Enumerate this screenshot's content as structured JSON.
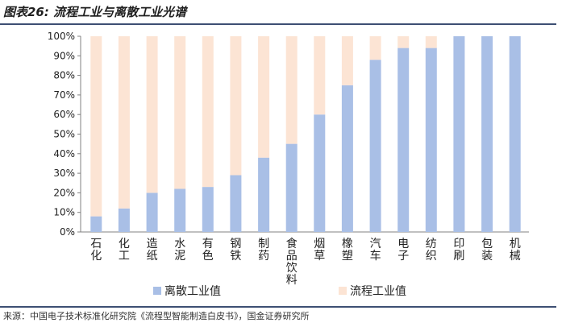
{
  "figure": {
    "title": "图表26:  流程工业与离散工业光谱",
    "source": "来源：中国电子技术标准化研究院《流程型智能制造白皮书》，国金证券研究所"
  },
  "chart_data": {
    "type": "bar",
    "stacked": true,
    "percent": true,
    "categories": [
      "石化",
      "化工",
      "造纸",
      "水泥",
      "有色",
      "钢铁",
      "制药",
      "食品饮料",
      "烟草",
      "橡塑",
      "汽车",
      "电子",
      "纺织",
      "印刷",
      "包装",
      "机械"
    ],
    "series": [
      {
        "name": "离散工业值",
        "color": "#a9bfe6",
        "values": [
          8,
          12,
          20,
          22,
          23,
          29,
          38,
          45,
          60,
          75,
          88,
          94,
          94,
          100,
          100,
          100
        ]
      },
      {
        "name": "流程工业值",
        "color": "#fce4d4",
        "values": [
          92,
          88,
          80,
          78,
          77,
          71,
          62,
          55,
          40,
          25,
          12,
          6,
          6,
          0,
          0,
          0
        ]
      }
    ],
    "ylim": [
      0,
      100
    ],
    "yticks": [
      "0%",
      "10%",
      "20%",
      "30%",
      "40%",
      "50%",
      "60%",
      "70%",
      "80%",
      "90%",
      "100%"
    ],
    "grid": false,
    "legend": "bottom"
  }
}
